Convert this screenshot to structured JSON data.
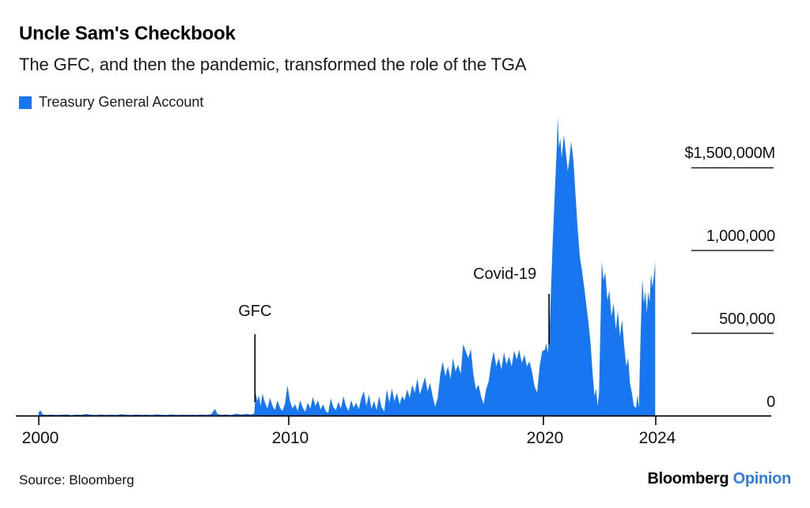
{
  "header": {
    "title": "Uncle Sam's Checkbook",
    "subtitle": "The GFC, and then the pandemic, transformed the role of the TGA"
  },
  "legend": {
    "items": [
      {
        "label": "Treasury General Account",
        "color": "#1877f0"
      }
    ]
  },
  "footer": {
    "source": "Source: Bloomberg",
    "logo": {
      "brand": "Bloomberg",
      "division": "Opinion",
      "division_color": "#2f7bdf"
    }
  },
  "chart_data": {
    "type": "area",
    "title": "Uncle Sam's Checkbook",
    "subtitle": "The GFC, and then the pandemic, transformed the role of the TGA",
    "unit": "$M",
    "grid": "right-stub-ticks",
    "legend_position": "top-left",
    "x_axis": {
      "tick_years": [
        2000,
        2010,
        2020,
        2024
      ],
      "tick_labels": [
        "2000",
        "2010",
        "2020",
        "2024"
      ],
      "range": [
        2000,
        2024.6
      ]
    },
    "y_axis": {
      "tick_values": [
        0,
        500000,
        1000000,
        1500000
      ],
      "tick_labels": [
        "0",
        "500,000",
        "1,000,000",
        "$1,500,000M"
      ],
      "range": [
        0,
        1850000
      ]
    },
    "annotations": [
      {
        "label": "GFC",
        "year": 2008.65
      },
      {
        "label": "Covid-19",
        "year": 2020.2
      }
    ],
    "series": [
      {
        "name": "Treasury General Account",
        "color": "#1877f0",
        "points": [
          [
            2000.0,
            25000
          ],
          [
            2000.08,
            32000
          ],
          [
            2000.16,
            9000
          ],
          [
            2000.3,
            6000
          ],
          [
            2000.5,
            8000
          ],
          [
            2000.7,
            5500
          ],
          [
            2000.9,
            7000
          ],
          [
            2001.1,
            9000
          ],
          [
            2001.3,
            5000
          ],
          [
            2001.5,
            8500
          ],
          [
            2001.7,
            6000
          ],
          [
            2001.9,
            12000
          ],
          [
            2002.1,
            7000
          ],
          [
            2002.3,
            5500
          ],
          [
            2002.5,
            9000
          ],
          [
            2002.7,
            6500
          ],
          [
            2002.9,
            8000
          ],
          [
            2003.1,
            6000
          ],
          [
            2003.3,
            11000
          ],
          [
            2003.5,
            7000
          ],
          [
            2003.7,
            5500
          ],
          [
            2003.9,
            9000
          ],
          [
            2004.1,
            6500
          ],
          [
            2004.3,
            8000
          ],
          [
            2004.5,
            5500
          ],
          [
            2004.7,
            10000
          ],
          [
            2004.9,
            7000
          ],
          [
            2005.1,
            6000
          ],
          [
            2005.3,
            9500
          ],
          [
            2005.5,
            6000
          ],
          [
            2005.7,
            8000
          ],
          [
            2005.9,
            6500
          ],
          [
            2006.1,
            7500
          ],
          [
            2006.3,
            5500
          ],
          [
            2006.5,
            9000
          ],
          [
            2006.7,
            6000
          ],
          [
            2006.9,
            11000
          ],
          [
            2007.05,
            43000
          ],
          [
            2007.15,
            12000
          ],
          [
            2007.3,
            7000
          ],
          [
            2007.5,
            9000
          ],
          [
            2007.7,
            6000
          ],
          [
            2007.9,
            14000
          ],
          [
            2008.1,
            8000
          ],
          [
            2008.3,
            12000
          ],
          [
            2008.5,
            9000
          ],
          [
            2008.62,
            15000
          ],
          [
            2008.68,
            140000
          ],
          [
            2008.74,
            90000
          ],
          [
            2008.8,
            125000
          ],
          [
            2008.88,
            60000
          ],
          [
            2008.95,
            135000
          ],
          [
            2009.05,
            80000
          ],
          [
            2009.15,
            45000
          ],
          [
            2009.25,
            110000
          ],
          [
            2009.35,
            60000
          ],
          [
            2009.45,
            35000
          ],
          [
            2009.55,
            95000
          ],
          [
            2009.65,
            50000
          ],
          [
            2009.75,
            30000
          ],
          [
            2009.85,
            75000
          ],
          [
            2009.95,
            185000
          ],
          [
            2010.05,
            90000
          ],
          [
            2010.15,
            45000
          ],
          [
            2010.25,
            70000
          ],
          [
            2010.35,
            30000
          ],
          [
            2010.45,
            95000
          ],
          [
            2010.55,
            50000
          ],
          [
            2010.65,
            25000
          ],
          [
            2010.75,
            80000
          ],
          [
            2010.85,
            45000
          ],
          [
            2010.95,
            115000
          ],
          [
            2011.05,
            60000
          ],
          [
            2011.15,
            95000
          ],
          [
            2011.25,
            40000
          ],
          [
            2011.35,
            70000
          ],
          [
            2011.45,
            30000
          ],
          [
            2011.55,
            18000
          ],
          [
            2011.65,
            105000
          ],
          [
            2011.75,
            55000
          ],
          [
            2011.85,
            35000
          ],
          [
            2011.95,
            85000
          ],
          [
            2012.05,
            45000
          ],
          [
            2012.15,
            120000
          ],
          [
            2012.25,
            60000
          ],
          [
            2012.35,
            30000
          ],
          [
            2012.45,
            95000
          ],
          [
            2012.55,
            50000
          ],
          [
            2012.65,
            80000
          ],
          [
            2012.75,
            40000
          ],
          [
            2012.85,
            110000
          ],
          [
            2012.95,
            150000
          ],
          [
            2013.05,
            60000
          ],
          [
            2013.15,
            130000
          ],
          [
            2013.25,
            45000
          ],
          [
            2013.35,
            90000
          ],
          [
            2013.45,
            35000
          ],
          [
            2013.55,
            120000
          ],
          [
            2013.65,
            50000
          ],
          [
            2013.75,
            28000
          ],
          [
            2013.85,
            160000
          ],
          [
            2013.95,
            80000
          ],
          [
            2014.05,
            165000
          ],
          [
            2014.15,
            90000
          ],
          [
            2014.25,
            140000
          ],
          [
            2014.35,
            70000
          ],
          [
            2014.45,
            120000
          ],
          [
            2014.55,
            95000
          ],
          [
            2014.65,
            160000
          ],
          [
            2014.75,
            110000
          ],
          [
            2014.85,
            190000
          ],
          [
            2014.95,
            140000
          ],
          [
            2015.05,
            225000
          ],
          [
            2015.15,
            130000
          ],
          [
            2015.25,
            180000
          ],
          [
            2015.35,
            235000
          ],
          [
            2015.45,
            150000
          ],
          [
            2015.55,
            200000
          ],
          [
            2015.65,
            120000
          ],
          [
            2015.75,
            55000
          ],
          [
            2015.85,
            110000
          ],
          [
            2015.95,
            250000
          ],
          [
            2016.05,
            330000
          ],
          [
            2016.15,
            240000
          ],
          [
            2016.25,
            300000
          ],
          [
            2016.35,
            225000
          ],
          [
            2016.45,
            350000
          ],
          [
            2016.55,
            270000
          ],
          [
            2016.65,
            310000
          ],
          [
            2016.75,
            255000
          ],
          [
            2016.85,
            435000
          ],
          [
            2016.95,
            390000
          ],
          [
            2017.05,
            350000
          ],
          [
            2017.15,
            405000
          ],
          [
            2017.25,
            250000
          ],
          [
            2017.35,
            160000
          ],
          [
            2017.45,
            190000
          ],
          [
            2017.55,
            120000
          ],
          [
            2017.65,
            70000
          ],
          [
            2017.75,
            160000
          ],
          [
            2017.85,
            210000
          ],
          [
            2017.95,
            320000
          ],
          [
            2018.05,
            390000
          ],
          [
            2018.15,
            300000
          ],
          [
            2018.25,
            350000
          ],
          [
            2018.35,
            280000
          ],
          [
            2018.45,
            385000
          ],
          [
            2018.55,
            310000
          ],
          [
            2018.65,
            360000
          ],
          [
            2018.75,
            300000
          ],
          [
            2018.85,
            395000
          ],
          [
            2018.95,
            340000
          ],
          [
            2019.05,
            400000
          ],
          [
            2019.15,
            320000
          ],
          [
            2019.25,
            370000
          ],
          [
            2019.35,
            300000
          ],
          [
            2019.45,
            330000
          ],
          [
            2019.55,
            270000
          ],
          [
            2019.65,
            180000
          ],
          [
            2019.75,
            140000
          ],
          [
            2019.85,
            300000
          ],
          [
            2019.95,
            390000
          ],
          [
            2020.05,
            400000
          ],
          [
            2020.1,
            440000
          ],
          [
            2020.15,
            380000
          ],
          [
            2020.22,
            520000
          ],
          [
            2020.28,
            800000
          ],
          [
            2020.33,
            1050000
          ],
          [
            2020.38,
            1250000
          ],
          [
            2020.43,
            1450000
          ],
          [
            2020.47,
            1600000
          ],
          [
            2020.51,
            1810000
          ],
          [
            2020.55,
            1620000
          ],
          [
            2020.6,
            1680000
          ],
          [
            2020.65,
            1560000
          ],
          [
            2020.73,
            1700000
          ],
          [
            2020.8,
            1590000
          ],
          [
            2020.87,
            1480000
          ],
          [
            2020.93,
            1560000
          ],
          [
            2020.99,
            1660000
          ],
          [
            2021.07,
            1540000
          ],
          [
            2021.15,
            1320000
          ],
          [
            2021.22,
            1130000
          ],
          [
            2021.3,
            960000
          ],
          [
            2021.38,
            870000
          ],
          [
            2021.45,
            780000
          ],
          [
            2021.52,
            680000
          ],
          [
            2021.6,
            570000
          ],
          [
            2021.68,
            440000
          ],
          [
            2021.75,
            260000
          ],
          [
            2021.82,
            120000
          ],
          [
            2021.88,
            165000
          ],
          [
            2021.93,
            60000
          ],
          [
            2021.98,
            140000
          ],
          [
            2022.02,
            450000
          ],
          [
            2022.08,
            935000
          ],
          [
            2022.14,
            820000
          ],
          [
            2022.2,
            870000
          ],
          [
            2022.28,
            700000
          ],
          [
            2022.35,
            760000
          ],
          [
            2022.42,
            600000
          ],
          [
            2022.5,
            680000
          ],
          [
            2022.58,
            520000
          ],
          [
            2022.65,
            640000
          ],
          [
            2022.72,
            480000
          ],
          [
            2022.8,
            580000
          ],
          [
            2022.88,
            420000
          ],
          [
            2022.95,
            300000
          ],
          [
            2023.02,
            350000
          ],
          [
            2023.08,
            200000
          ],
          [
            2023.15,
            140000
          ],
          [
            2023.22,
            60000
          ],
          [
            2023.3,
            48000
          ],
          [
            2023.35,
            130000
          ],
          [
            2023.4,
            50000
          ],
          [
            2023.45,
            420000
          ],
          [
            2023.52,
            830000
          ],
          [
            2023.58,
            680000
          ],
          [
            2023.63,
            760000
          ],
          [
            2023.68,
            620000
          ],
          [
            2023.73,
            750000
          ],
          [
            2023.78,
            690000
          ],
          [
            2023.83,
            860000
          ],
          [
            2023.88,
            780000
          ],
          [
            2023.93,
            840000
          ],
          [
            2023.98,
            930000
          ]
        ]
      }
    ]
  }
}
